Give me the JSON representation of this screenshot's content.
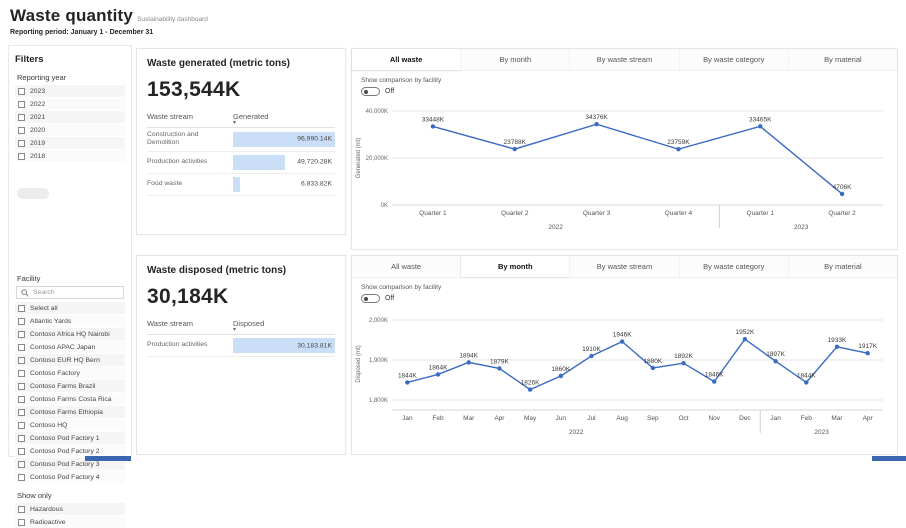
{
  "header": {
    "title": "Waste quantity",
    "subtitle": "Sustainability dashboard",
    "reporting_period": "Reporting period: January 1 - December 31"
  },
  "filters": {
    "title": "Filters",
    "reporting_year": {
      "label": "Reporting year",
      "options": [
        "2023",
        "2022",
        "2021",
        "2020",
        "2019",
        "2018"
      ]
    },
    "facility": {
      "label": "Facility",
      "search_placeholder": "Search",
      "options": [
        "Select all",
        "Atlantic Yards",
        "Contoso Africa HQ Nairobi",
        "Contoso APAC Japan",
        "Contoso EUR HQ Bern",
        "Contoso Factory",
        "Contoso Farms Brazil",
        "Contoso Farms Costa Rica",
        "Contoso Farms Ethiopia",
        "Contoso HQ",
        "Contoso Pod Factory 1",
        "Contoso Pod Factory 2",
        "Contoso Pod Factory 3",
        "Contoso Pod Factory 4"
      ]
    },
    "show_only": {
      "label": "Show only",
      "options": [
        "Hazardous",
        "Radioactive"
      ]
    }
  },
  "generated_card": {
    "title": "Waste generated (metric tons)",
    "total": "153,544K",
    "col_stream": "Waste stream",
    "col_value": "Generated",
    "sort_icon": "▾",
    "rows": [
      {
        "stream": "Construction and Demolition",
        "value": "96,990.14K",
        "pct": 100
      },
      {
        "stream": "Production activities",
        "value": "49,720.28K",
        "pct": 51
      },
      {
        "stream": "Food waste",
        "value": "6,833.82K",
        "pct": 7
      }
    ]
  },
  "disposed_card": {
    "title": "Waste disposed (metric tons)",
    "total": "30,184K",
    "col_stream": "Waste stream",
    "col_value": "Disposed",
    "sort_icon": "▾",
    "rows": [
      {
        "stream": "Production activities",
        "value": "30,183.81K",
        "pct": 100
      }
    ]
  },
  "top_panel": {
    "tabs": [
      "All waste",
      "By month",
      "By waste stream",
      "By waste category",
      "By material"
    ],
    "active_tab": 0,
    "toggle_label": "Show comparison by facility",
    "toggle_state": "Off"
  },
  "bottom_panel": {
    "tabs": [
      "All waste",
      "By month",
      "By waste stream",
      "By waste category",
      "By material"
    ],
    "active_tab": 1,
    "toggle_label": "Show comparison by facility",
    "toggle_state": "Off"
  },
  "colors": {
    "line_blue": "#3a6cc4",
    "bar_fill": "#cbdef7",
    "gridline": "#e6e6e6",
    "axis_text": "#666666"
  },
  "chart_data": [
    {
      "type": "line",
      "title": "Waste generated by quarter",
      "ylabel": "Generated (mt)",
      "categories": [
        "Quarter 1",
        "Quarter 2",
        "Quarter 3",
        "Quarter 4",
        "Quarter 1",
        "Quarter 2"
      ],
      "year_groups": [
        {
          "label": "2022",
          "span": 4
        },
        {
          "label": "2023",
          "span": 2
        }
      ],
      "values": [
        33448,
        23788,
        34376,
        23759,
        33465,
        4706
      ],
      "point_labels": [
        "33448K",
        "23788K",
        "34376K",
        "23759K",
        "33465K",
        "4706K"
      ],
      "yticks": [
        {
          "v": 0,
          "label": "0K"
        },
        {
          "v": 20000,
          "label": "20,000K"
        },
        {
          "v": 40000,
          "label": "40,000K"
        }
      ],
      "ylim": [
        0,
        40000
      ],
      "grid": true,
      "legend": "none",
      "line_color": "#3a6cc4"
    },
    {
      "type": "line",
      "title": "Waste disposed by month",
      "ylabel": "Disposed (mt)",
      "categories": [
        "Jan",
        "Feb",
        "Mar",
        "Apr",
        "May",
        "Jun",
        "Jul",
        "Aug",
        "Sep",
        "Oct",
        "Nov",
        "Dec",
        "Jan",
        "Feb",
        "Mar",
        "Apr"
      ],
      "year_groups": [
        {
          "label": "2022",
          "span": 12
        },
        {
          "label": "2023",
          "span": 4
        }
      ],
      "values": [
        1844,
        1864,
        1894,
        1879,
        1826,
        1860,
        1910,
        1946,
        1880,
        1892,
        1846,
        1952,
        1897,
        1844,
        1933,
        1917
      ],
      "point_labels": [
        "1844K",
        "1864K",
        "1894K",
        "1879K",
        "1826K",
        "1860K",
        "1910K",
        "1946K",
        "1880K",
        "1892K",
        "1846K",
        "1952K",
        "1897K",
        "1844K",
        "1933K",
        "1917K"
      ],
      "yticks": [
        {
          "v": 1800,
          "label": "1,800K"
        },
        {
          "v": 1900,
          "label": "1,900K"
        },
        {
          "v": 2000,
          "label": "2,000K"
        }
      ],
      "ylim": [
        1775,
        2005
      ],
      "grid": true,
      "legend": "none",
      "line_color": "#3a6cc4"
    }
  ]
}
